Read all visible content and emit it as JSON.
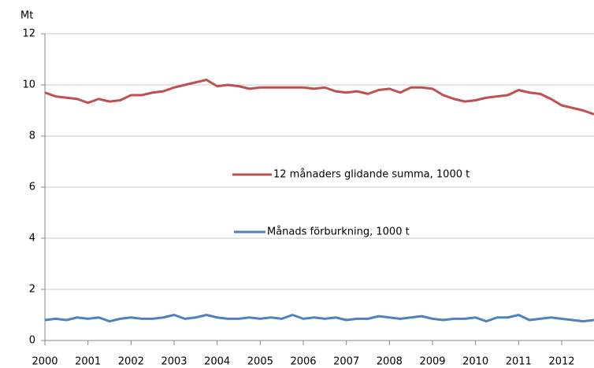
{
  "chart_data": {
    "type": "line",
    "y_label": "Mt",
    "xlim": [
      2000,
      2012.75
    ],
    "xticks": [
      2000,
      2001,
      2002,
      2003,
      2004,
      2005,
      2006,
      2007,
      2008,
      2009,
      2010,
      2011,
      2012
    ],
    "ylim": [
      0,
      12
    ],
    "yticks": [
      0,
      2,
      4,
      6,
      8,
      10,
      12
    ],
    "grid": true,
    "x": [
      2000,
      2000.25,
      2000.5,
      2000.75,
      2001,
      2001.25,
      2001.5,
      2001.75,
      2002,
      2002.25,
      2002.5,
      2002.75,
      2003,
      2003.25,
      2003.5,
      2003.75,
      2004,
      2004.25,
      2004.5,
      2004.75,
      2005,
      2005.25,
      2005.5,
      2005.75,
      2006,
      2006.25,
      2006.5,
      2006.75,
      2007,
      2007.25,
      2007.5,
      2007.75,
      2008,
      2008.25,
      2008.5,
      2008.75,
      2009,
      2009.25,
      2009.5,
      2009.75,
      2010,
      2010.25,
      2010.5,
      2010.75,
      2011,
      2011.25,
      2011.5,
      2011.75,
      2012,
      2012.25,
      2012.5,
      2012.75
    ],
    "series": [
      {
        "name": "12 månaders glidande summa, 1000 t",
        "color": "#c0504d",
        "values": [
          9.7,
          9.55,
          9.5,
          9.45,
          9.3,
          9.45,
          9.35,
          9.4,
          9.6,
          9.6,
          9.7,
          9.75,
          9.9,
          10.0,
          10.1,
          10.2,
          9.95,
          10.0,
          9.95,
          9.85,
          9.9,
          9.9,
          9.9,
          9.9,
          9.9,
          9.85,
          9.9,
          9.75,
          9.7,
          9.75,
          9.65,
          9.8,
          9.85,
          9.7,
          9.9,
          9.9,
          9.85,
          9.6,
          9.45,
          9.35,
          9.4,
          9.5,
          9.55,
          9.6,
          9.8,
          9.7,
          9.65,
          9.45,
          9.2,
          9.1,
          9.0,
          8.85
        ]
      },
      {
        "name": "Månads förburkning, 1000 t",
        "color": "#4f81bd",
        "values": [
          0.8,
          0.85,
          0.8,
          0.9,
          0.85,
          0.9,
          0.75,
          0.85,
          0.9,
          0.85,
          0.85,
          0.9,
          1.0,
          0.85,
          0.9,
          1.0,
          0.9,
          0.85,
          0.85,
          0.9,
          0.85,
          0.9,
          0.85,
          1.0,
          0.85,
          0.9,
          0.85,
          0.9,
          0.8,
          0.85,
          0.85,
          0.95,
          0.9,
          0.85,
          0.9,
          0.95,
          0.85,
          0.8,
          0.85,
          0.85,
          0.9,
          0.75,
          0.9,
          0.9,
          1.0,
          0.8,
          0.85,
          0.9,
          0.85,
          0.8,
          0.75,
          0.8
        ]
      }
    ]
  }
}
